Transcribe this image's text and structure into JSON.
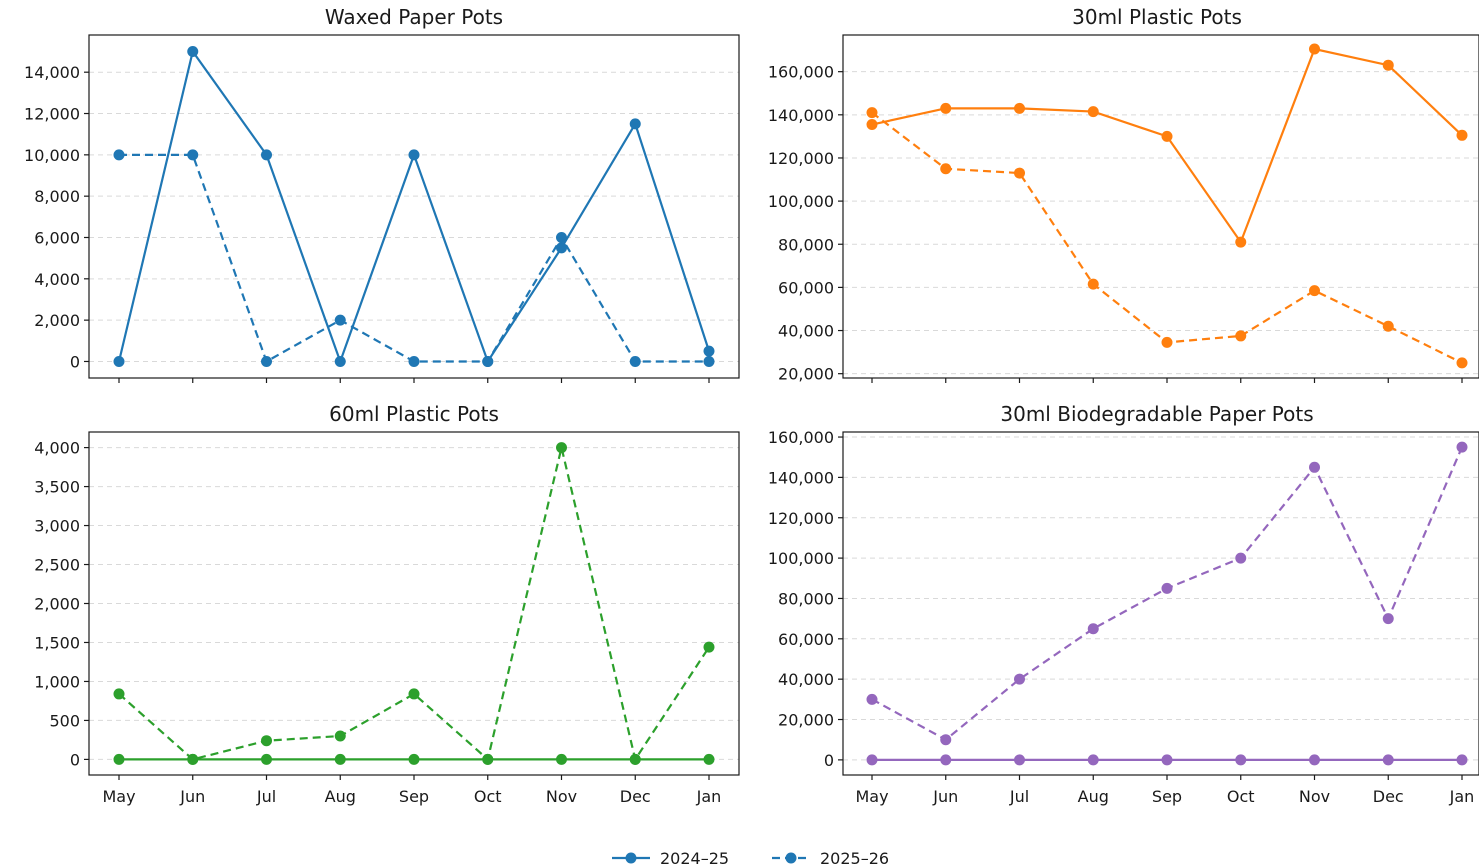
{
  "chart_data": [
    {
      "type": "line",
      "title": "Waxed Paper Pots",
      "categories": [
        "May",
        "Jun",
        "Jul",
        "Aug",
        "Sep",
        "Oct",
        "Nov",
        "Dec",
        "Jan"
      ],
      "ylim": [
        -800,
        15800
      ],
      "yticks": [
        0,
        2000,
        4000,
        6000,
        8000,
        10000,
        12000,
        14000
      ],
      "ytick_labels": [
        "0",
        "2,000",
        "4,000",
        "6,000",
        "8,000",
        "10,000",
        "12,000",
        "14,000"
      ],
      "grid": "y-dashed",
      "color": "#1f77b4",
      "series": [
        {
          "name": "2024–25",
          "style": "solid",
          "values": [
            0,
            15000,
            10000,
            0,
            10000,
            0,
            5500,
            11500,
            500
          ]
        },
        {
          "name": "2025–26",
          "style": "dashed",
          "values": [
            10000,
            10000,
            0,
            2000,
            0,
            0,
            6000,
            0,
            0
          ]
        }
      ]
    },
    {
      "type": "line",
      "title": "30ml Plastic Pots",
      "categories": [
        "May",
        "Jun",
        "Jul",
        "Aug",
        "Sep",
        "Oct",
        "Nov",
        "Dec",
        "Jan"
      ],
      "ylim": [
        18000,
        177000
      ],
      "yticks": [
        20000,
        40000,
        60000,
        80000,
        100000,
        120000,
        140000,
        160000
      ],
      "ytick_labels": [
        "20,000",
        "40,000",
        "60,000",
        "80,000",
        "100,000",
        "120,000",
        "140,000",
        "160,000"
      ],
      "grid": "y-dashed",
      "color": "#ff7f0e",
      "series": [
        {
          "name": "2024–25",
          "style": "solid",
          "values": [
            135500,
            143000,
            143000,
            141500,
            130000,
            81000,
            170500,
            163000,
            130500
          ]
        },
        {
          "name": "2025–26",
          "style": "dashed",
          "values": [
            141000,
            115000,
            113000,
            61500,
            34500,
            37500,
            58500,
            42000,
            25000
          ]
        }
      ]
    },
    {
      "type": "line",
      "title": "60ml Plastic Pots",
      "categories": [
        "May",
        "Jun",
        "Jul",
        "Aug",
        "Sep",
        "Oct",
        "Nov",
        "Dec",
        "Jan"
      ],
      "ylim": [
        -200,
        4200
      ],
      "yticks": [
        0,
        500,
        1000,
        1500,
        2000,
        2500,
        3000,
        3500,
        4000
      ],
      "ytick_labels": [
        "0",
        "500",
        "1,000",
        "1,500",
        "2,000",
        "2,500",
        "3,000",
        "3,500",
        "4,000"
      ],
      "grid": "y-dashed",
      "color": "#2ca02c",
      "series": [
        {
          "name": "2024–25",
          "style": "solid",
          "values": [
            0,
            0,
            0,
            0,
            0,
            0,
            0,
            0,
            0
          ]
        },
        {
          "name": "2025–26",
          "style": "dashed",
          "values": [
            840,
            0,
            240,
            300,
            840,
            0,
            4000,
            0,
            1440
          ]
        }
      ]
    },
    {
      "type": "line",
      "title": "30ml Biodegradable Paper Pots",
      "categories": [
        "May",
        "Jun",
        "Jul",
        "Aug",
        "Sep",
        "Oct",
        "Nov",
        "Dec",
        "Jan"
      ],
      "ylim": [
        -7500,
        162500
      ],
      "yticks": [
        0,
        20000,
        40000,
        60000,
        80000,
        100000,
        120000,
        140000,
        160000
      ],
      "ytick_labels": [
        "0",
        "20,000",
        "40,000",
        "60,000",
        "80,000",
        "100,000",
        "120,000",
        "140,000",
        "160,000"
      ],
      "grid": "y-dashed",
      "color": "#9467bd",
      "series": [
        {
          "name": "2024–25",
          "style": "solid",
          "values": [
            0,
            0,
            0,
            0,
            0,
            0,
            0,
            0,
            0
          ]
        },
        {
          "name": "2025–26",
          "style": "dashed",
          "values": [
            30000,
            10000,
            40000,
            65000,
            85000,
            100000,
            145000,
            70000,
            155000
          ]
        }
      ]
    }
  ],
  "legend": {
    "placement": "bottom-center",
    "entries": [
      {
        "label": "2024–25",
        "style": "solid",
        "color": "#1f77b4"
      },
      {
        "label": "2025–26",
        "style": "dashed",
        "color": "#1f77b4"
      }
    ]
  }
}
